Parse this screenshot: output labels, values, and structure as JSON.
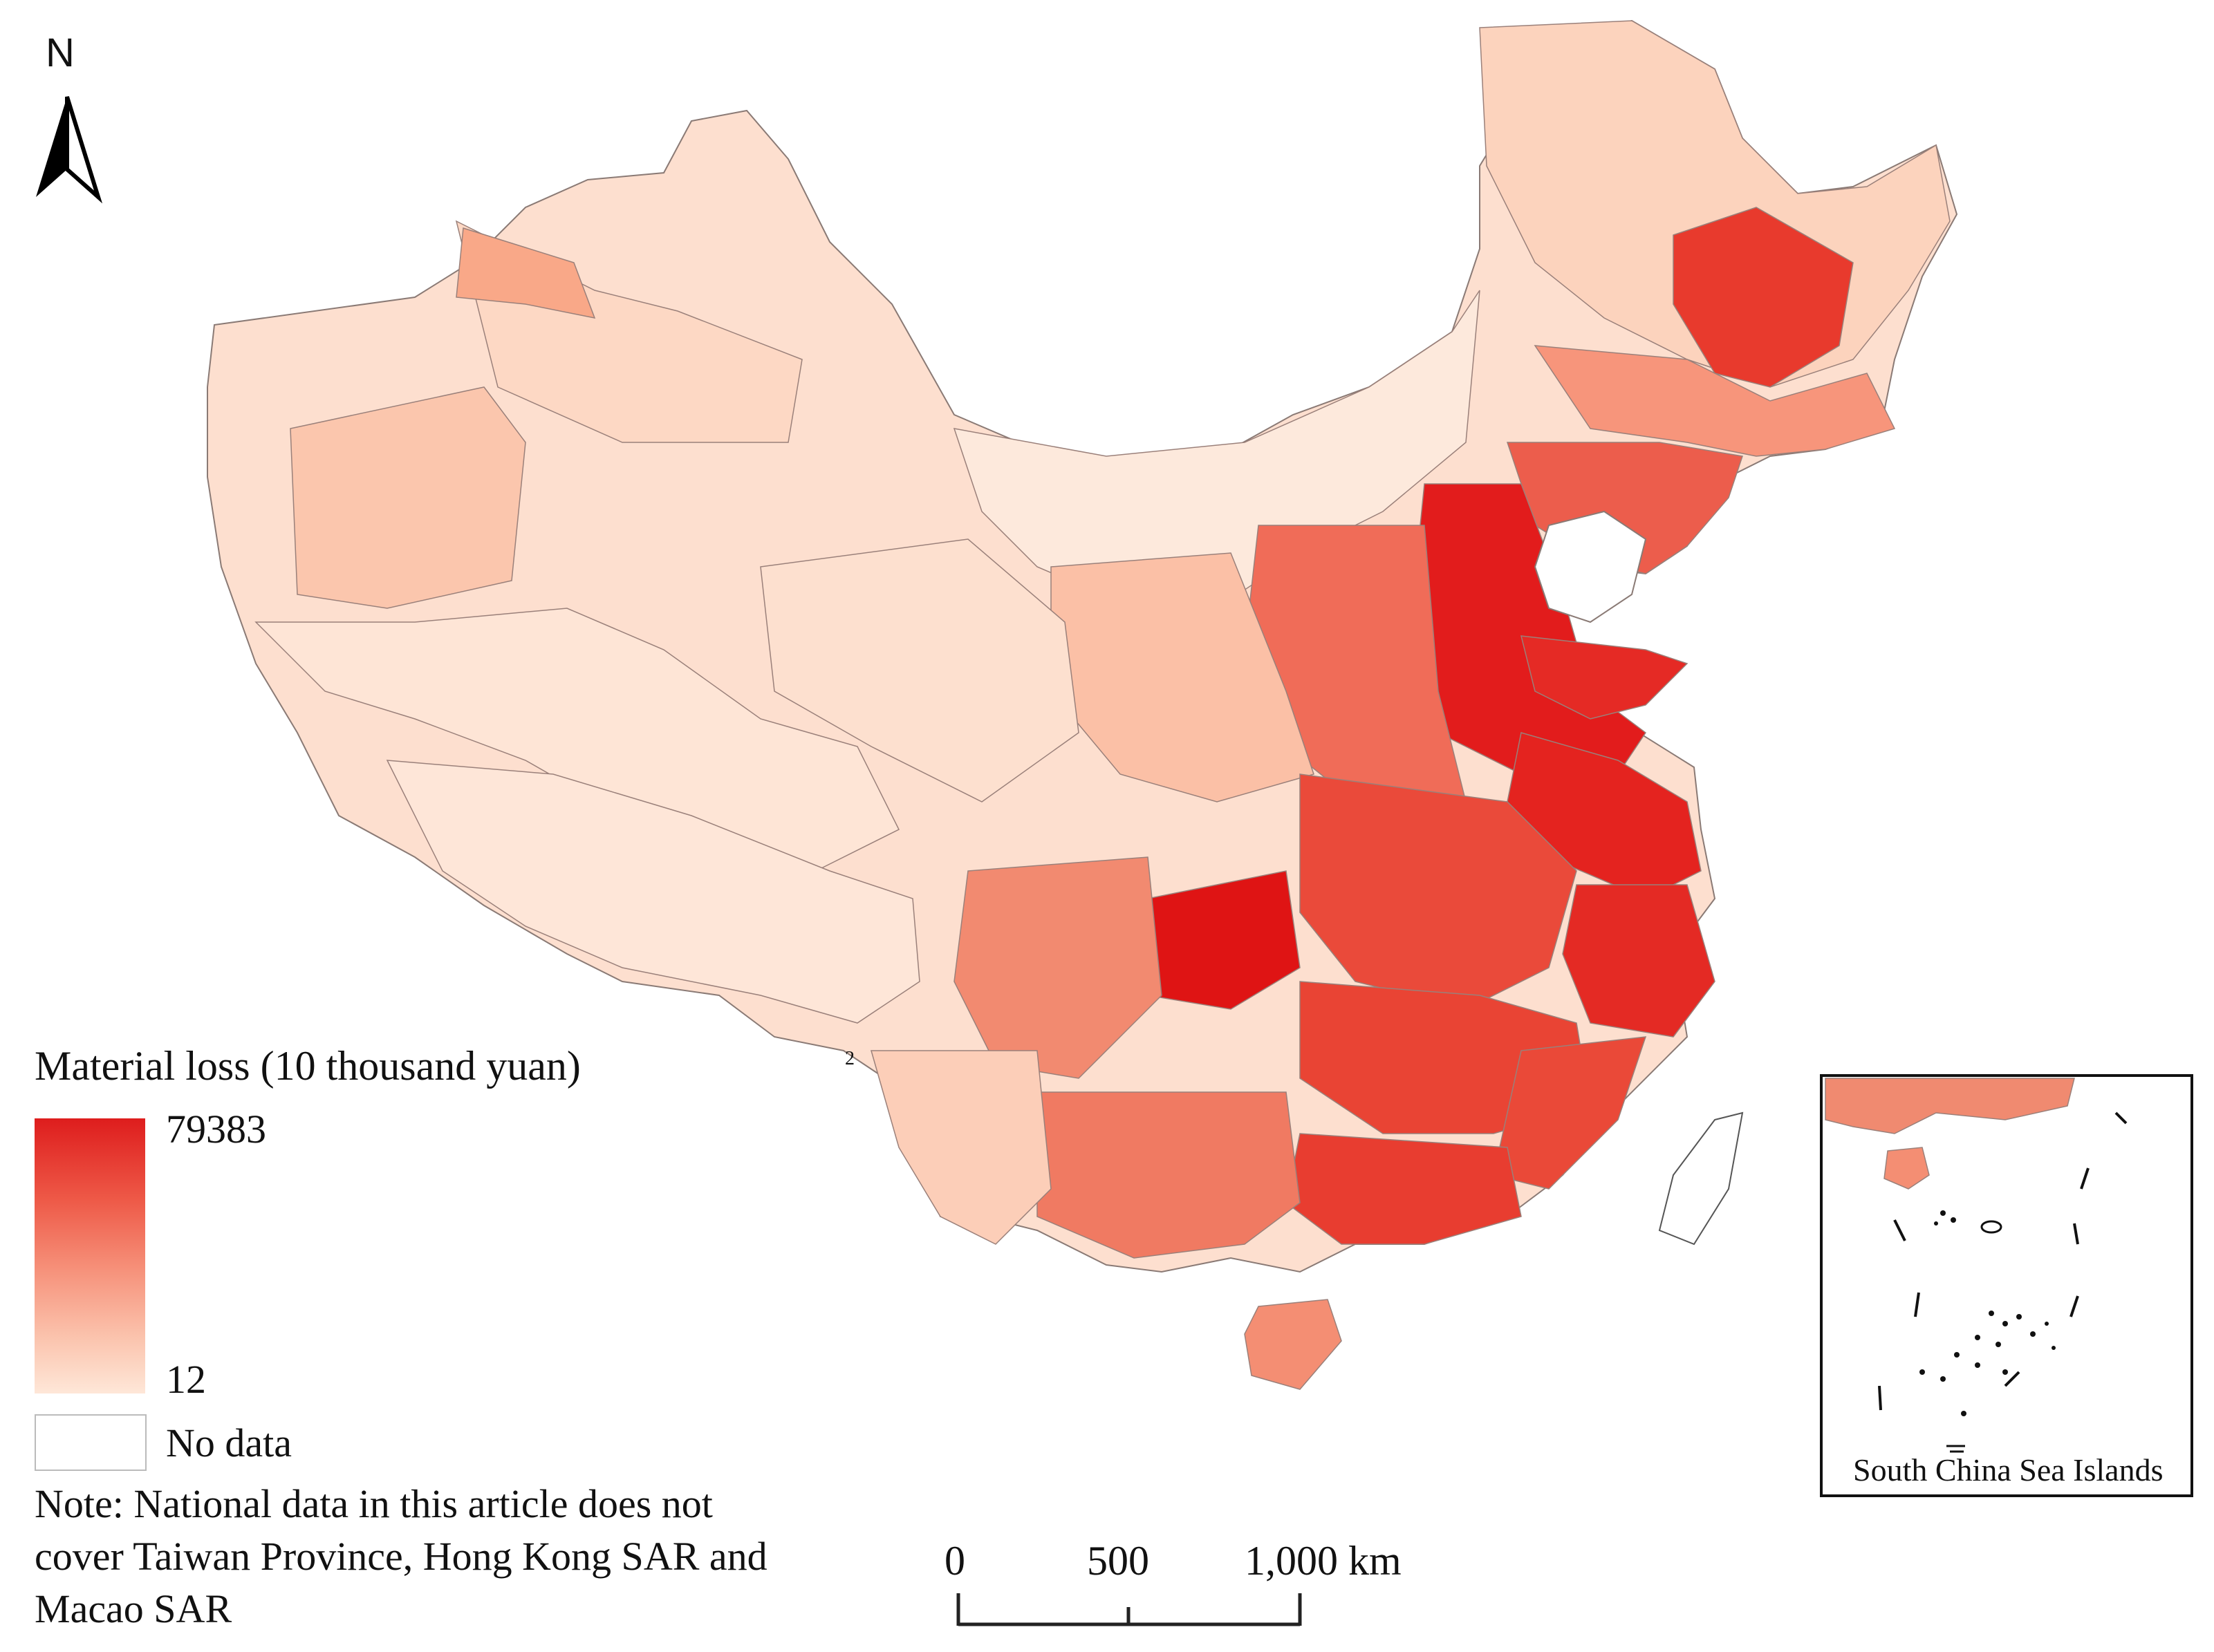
{
  "north_arrow": {
    "letter": "N"
  },
  "legend": {
    "title": "Material loss (10 thousand yuan)",
    "max_label": "79383",
    "min_label": "12",
    "no_data_label": "No data",
    "colors": {
      "high": "#de1d1d",
      "mid": "#f6917a",
      "low": "#fee7d8",
      "no_data": "#ffffff"
    }
  },
  "note": "Note: National data in this article does not cover Taiwan Province, Hong Kong SAR and Macao SAR",
  "scale_bar": {
    "labels": [
      "0",
      "500",
      "1,000 km"
    ]
  },
  "inset": {
    "label": "South China Sea Islands"
  },
  "stray_label": "2"
}
